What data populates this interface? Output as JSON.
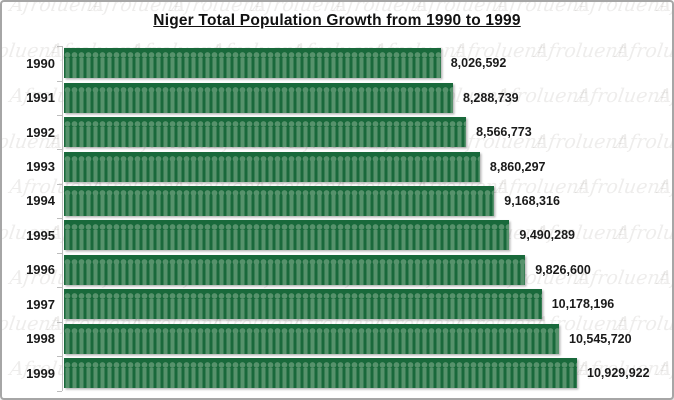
{
  "title": "Niger Total Population Growth from 1990 to 1999",
  "watermark": {
    "text": "Afroluent"
  },
  "chart_data": {
    "type": "bar",
    "orientation": "horizontal",
    "title": "Niger Total Population Growth from 1990 to 1999",
    "categories": [
      "1990",
      "1991",
      "1992",
      "1993",
      "1994",
      "1995",
      "1996",
      "1997",
      "1998",
      "1999"
    ],
    "values": [
      8026592,
      8288739,
      8566773,
      8860297,
      9168316,
      9490289,
      9826600,
      10178196,
      10545720,
      10929922
    ],
    "value_labels": [
      "8,026,592",
      "8,288,739",
      "8,566,773",
      "8,860,297",
      "9,168,316",
      "9,490,289",
      "9,826,600",
      "10,178,196",
      "10,545,720",
      "10,929,922"
    ],
    "xlabel": "",
    "ylabel": "",
    "xlim": [
      0,
      10929922
    ],
    "grid": false,
    "legend": "none",
    "data_labels": "outside-end",
    "bar_color": "#19693b",
    "pictogram_color": "#57926c",
    "bar_style": "pictogram-people"
  }
}
